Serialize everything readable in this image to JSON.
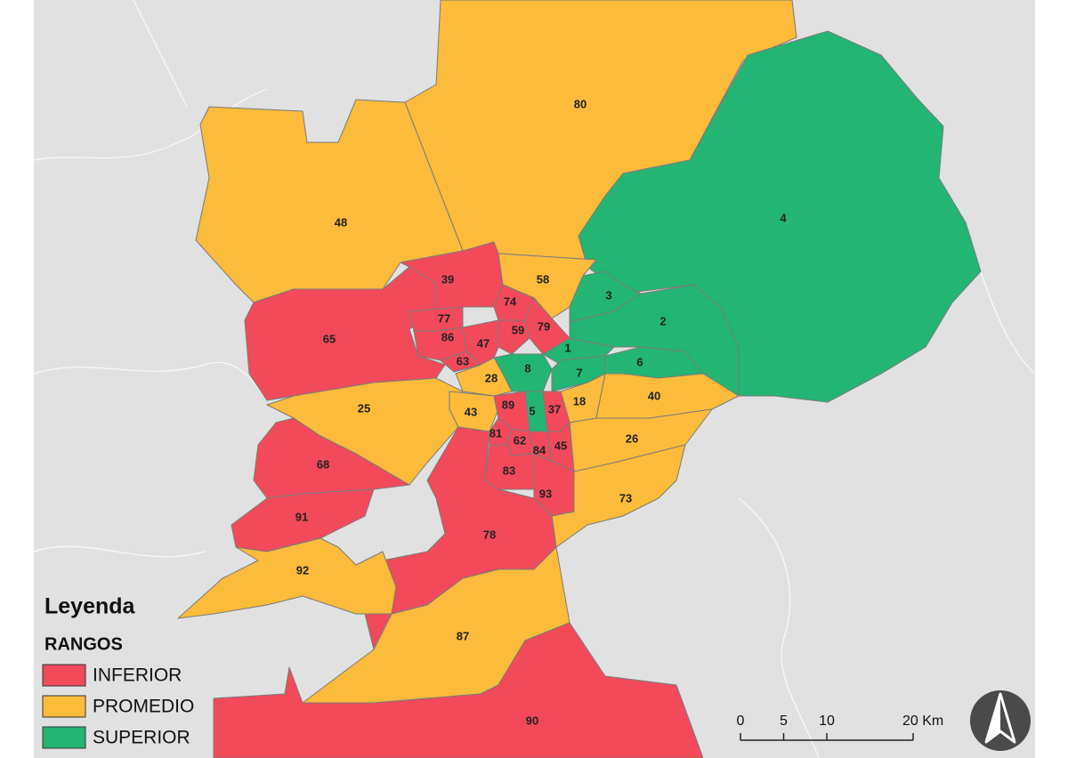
{
  "legend": {
    "title": "Leyenda",
    "subtitle": "RANGOS",
    "items": [
      {
        "name": "INFERIOR",
        "color": "#f24a5a"
      },
      {
        "name": "PROMEDIO",
        "color": "#fcbb3a"
      },
      {
        "name": "SUPERIOR",
        "color": "#23b573"
      }
    ]
  },
  "regions": [
    {
      "label": "80",
      "range": "PROMEDIO"
    },
    {
      "label": "48",
      "range": "PROMEDIO"
    },
    {
      "label": "4",
      "range": "SUPERIOR"
    },
    {
      "label": "65",
      "range": "INFERIOR"
    },
    {
      "label": "39",
      "range": "INFERIOR"
    },
    {
      "label": "58",
      "range": "PROMEDIO"
    },
    {
      "label": "3",
      "range": "SUPERIOR"
    },
    {
      "label": "2",
      "range": "SUPERIOR"
    },
    {
      "label": "1",
      "range": "SUPERIOR"
    },
    {
      "label": "77",
      "range": "INFERIOR"
    },
    {
      "label": "74",
      "range": "INFERIOR"
    },
    {
      "label": "79",
      "range": "INFERIOR"
    },
    {
      "label": "59",
      "range": "INFERIOR"
    },
    {
      "label": "86",
      "range": "INFERIOR"
    },
    {
      "label": "47",
      "range": "INFERIOR"
    },
    {
      "label": "63",
      "range": "INFERIOR"
    },
    {
      "label": "8",
      "range": "SUPERIOR"
    },
    {
      "label": "7",
      "range": "SUPERIOR"
    },
    {
      "label": "6",
      "range": "SUPERIOR"
    },
    {
      "label": "28",
      "range": "PROMEDIO"
    },
    {
      "label": "25",
      "range": "PROMEDIO"
    },
    {
      "label": "43",
      "range": "PROMEDIO"
    },
    {
      "label": "5",
      "range": "SUPERIOR"
    },
    {
      "label": "18",
      "range": "PROMEDIO"
    },
    {
      "label": "40",
      "range": "PROMEDIO"
    },
    {
      "label": "26",
      "range": "PROMEDIO"
    },
    {
      "label": "73",
      "range": "PROMEDIO"
    },
    {
      "label": "89",
      "range": "INFERIOR"
    },
    {
      "label": "37",
      "range": "INFERIOR"
    },
    {
      "label": "81",
      "range": "INFERIOR"
    },
    {
      "label": "62",
      "range": "INFERIOR"
    },
    {
      "label": "84",
      "range": "INFERIOR"
    },
    {
      "label": "45",
      "range": "INFERIOR"
    },
    {
      "label": "83",
      "range": "INFERIOR"
    },
    {
      "label": "93",
      "range": "INFERIOR"
    },
    {
      "label": "78",
      "range": "INFERIOR"
    },
    {
      "label": "68",
      "range": "INFERIOR"
    },
    {
      "label": "91",
      "range": "INFERIOR"
    },
    {
      "label": "92",
      "range": "PROMEDIO"
    },
    {
      "label": "87",
      "range": "PROMEDIO"
    },
    {
      "label": "90",
      "range": "INFERIOR"
    }
  ],
  "scale_bar": {
    "range": [
      0,
      20
    ],
    "ticks": [
      0,
      5,
      10,
      {
        "value": 20,
        "label": "20 Km"
      }
    ]
  }
}
